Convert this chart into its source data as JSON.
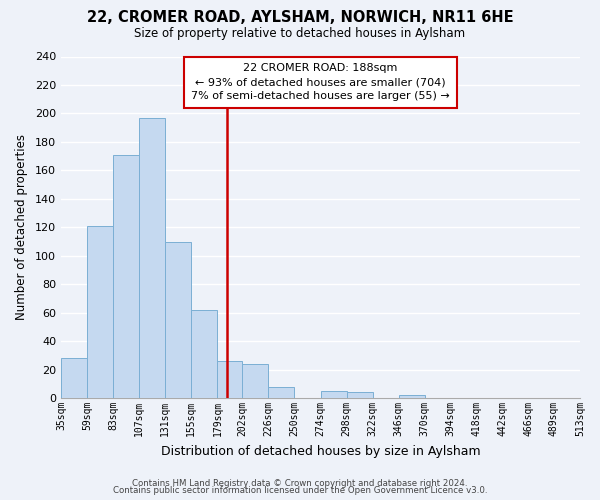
{
  "title": "22, CROMER ROAD, AYLSHAM, NORWICH, NR11 6HE",
  "subtitle": "Size of property relative to detached houses in Aylsham",
  "xlabel": "Distribution of detached houses by size in Aylsham",
  "ylabel": "Number of detached properties",
  "bar_color": "#c5d9f0",
  "bar_edge_color": "#7bafd4",
  "bin_edges": [
    35,
    59,
    83,
    107,
    131,
    155,
    179,
    202,
    226,
    250,
    274,
    298,
    322,
    346,
    370,
    394,
    418,
    442,
    466,
    489,
    513
  ],
  "bin_labels": [
    "35sqm",
    "59sqm",
    "83sqm",
    "107sqm",
    "131sqm",
    "155sqm",
    "179sqm",
    "202sqm",
    "226sqm",
    "250sqm",
    "274sqm",
    "298sqm",
    "322sqm",
    "346sqm",
    "370sqm",
    "394sqm",
    "418sqm",
    "442sqm",
    "466sqm",
    "489sqm",
    "513sqm"
  ],
  "counts": [
    28,
    121,
    171,
    197,
    110,
    62,
    26,
    24,
    8,
    0,
    5,
    4,
    0,
    2,
    0,
    0,
    0,
    0,
    0,
    0
  ],
  "property_value": 188,
  "vline_color": "#cc0000",
  "annotation_title": "22 CROMER ROAD: 188sqm",
  "annotation_line1": "← 93% of detached houses are smaller (704)",
  "annotation_line2": "7% of semi-detached houses are larger (55) →",
  "annotation_box_facecolor": "#ffffff",
  "annotation_box_edgecolor": "#cc0000",
  "footer1": "Contains HM Land Registry data © Crown copyright and database right 2024.",
  "footer2": "Contains public sector information licensed under the Open Government Licence v3.0.",
  "ylim": [
    0,
    240
  ],
  "yticks": [
    0,
    20,
    40,
    60,
    80,
    100,
    120,
    140,
    160,
    180,
    200,
    220,
    240
  ],
  "background_color": "#eef2f9",
  "grid_color": "#ffffff",
  "spine_color": "#aaaaaa"
}
